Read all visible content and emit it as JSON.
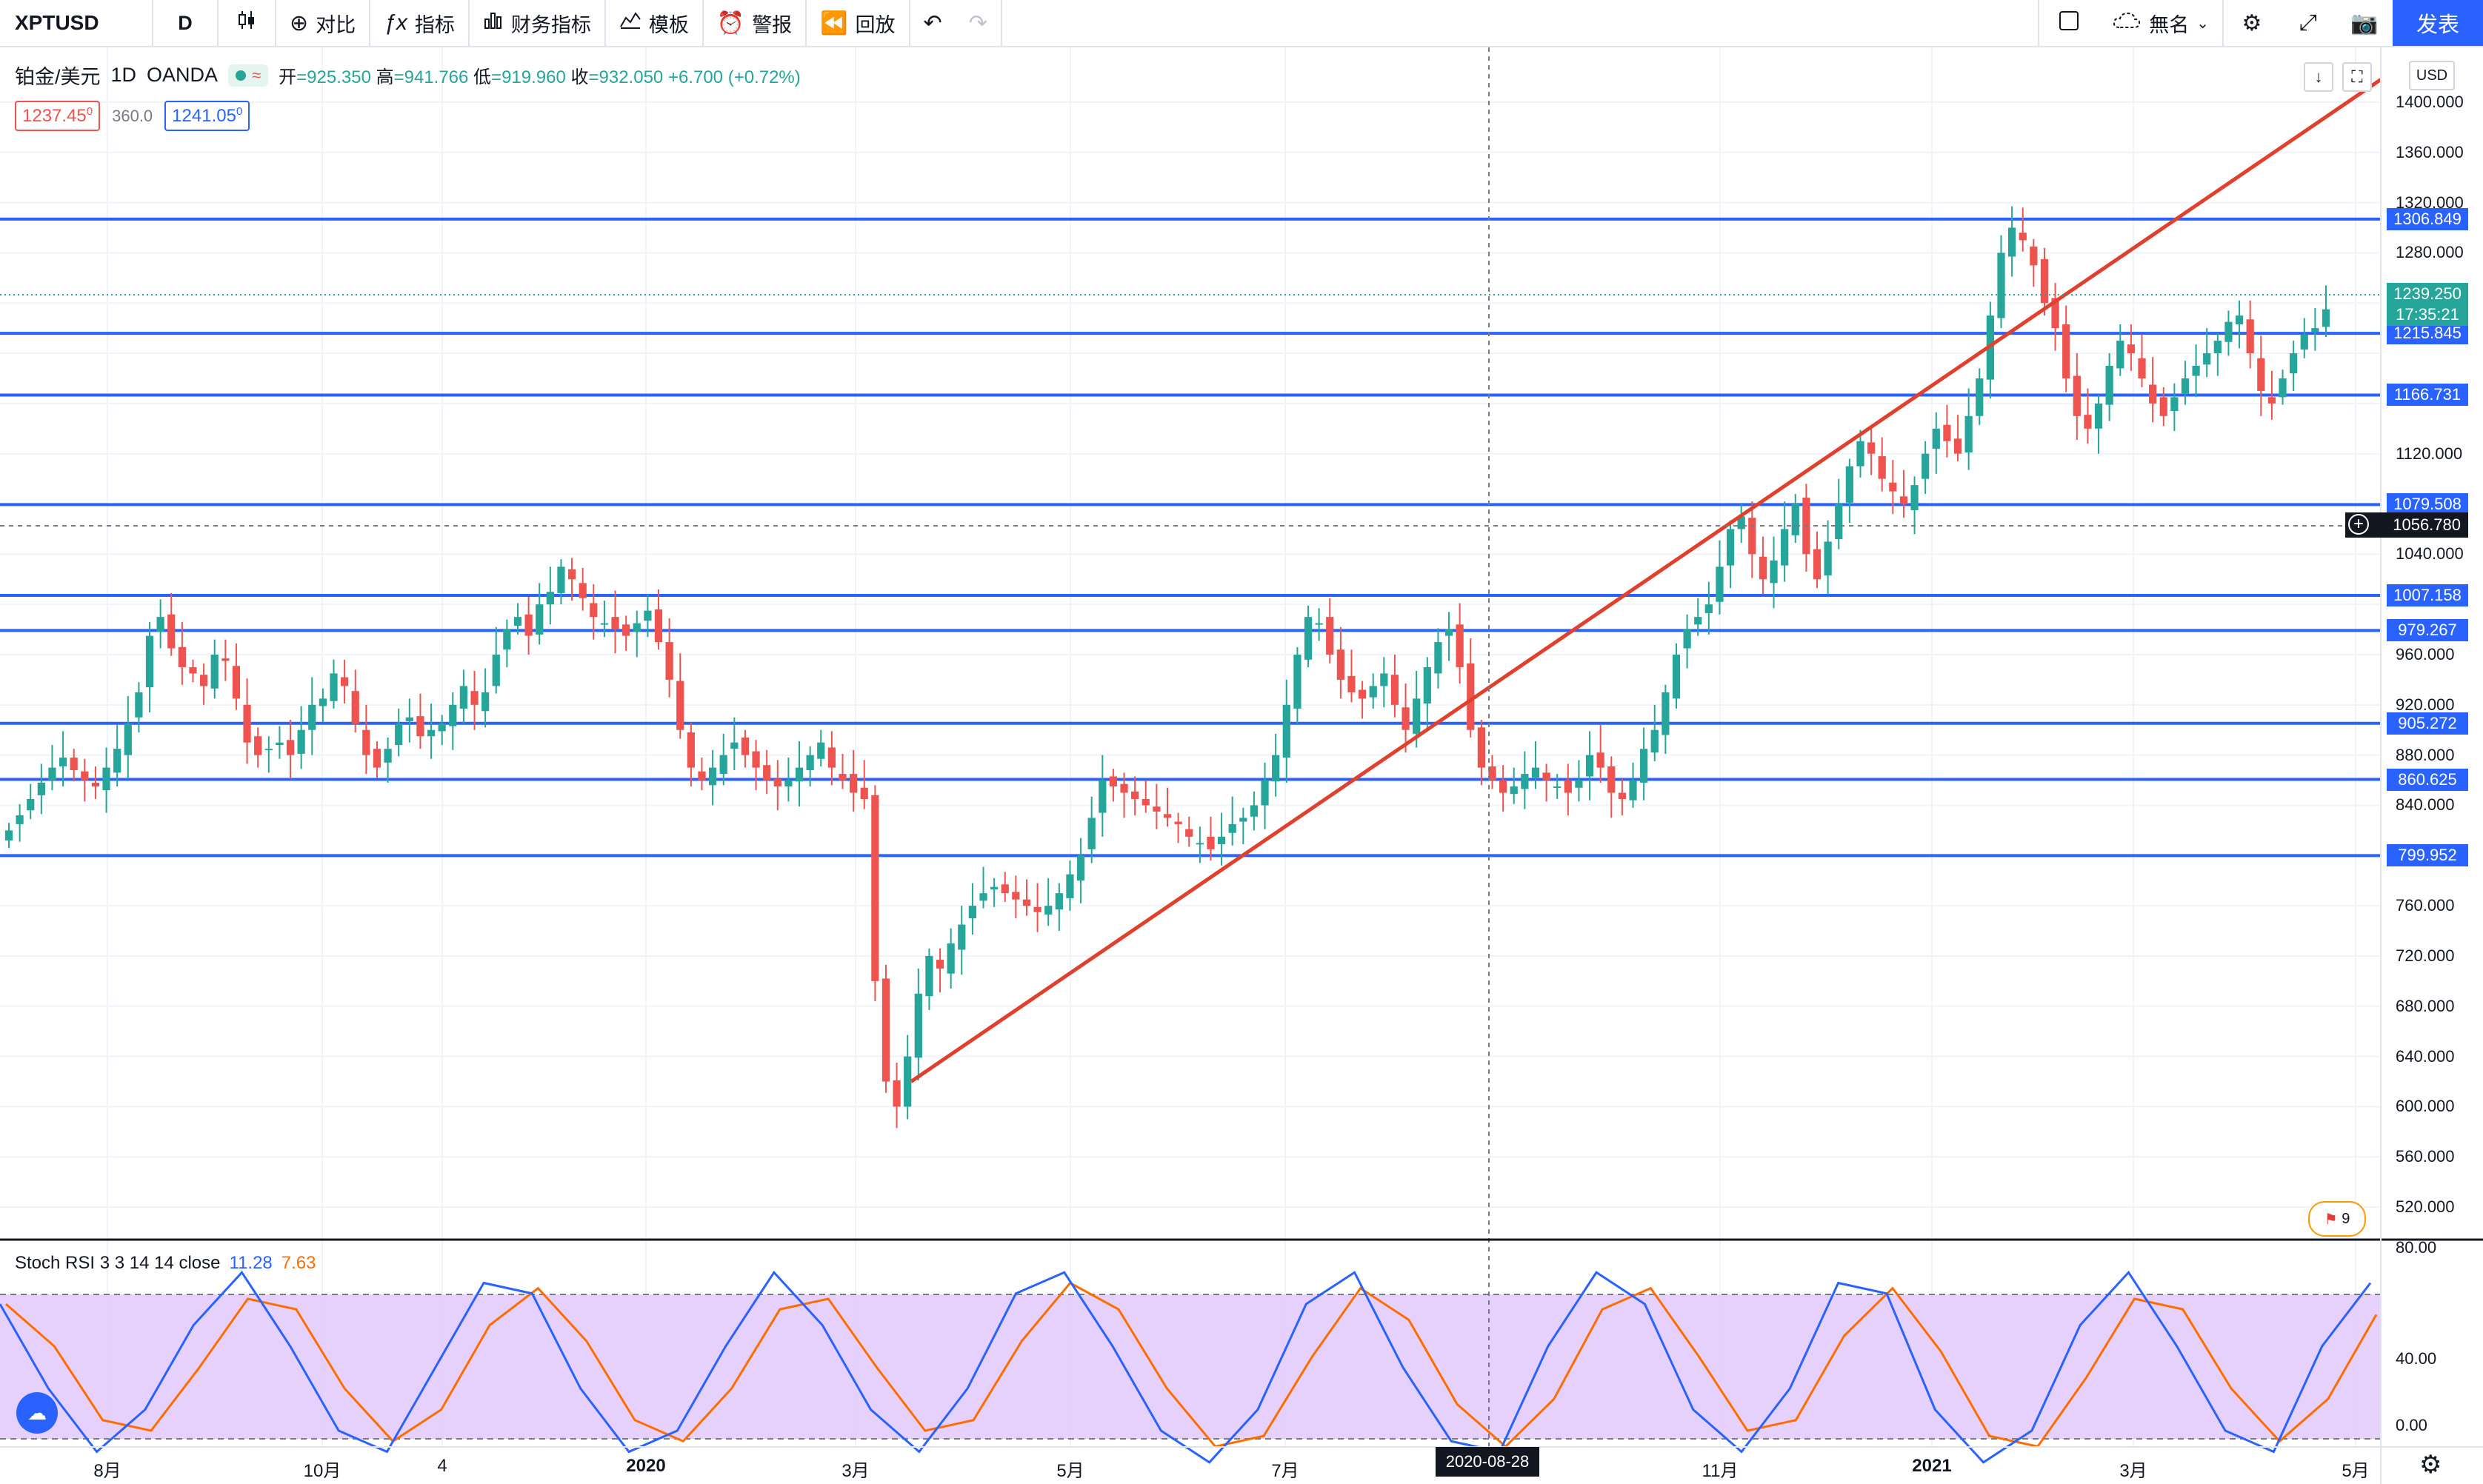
{
  "toolbar": {
    "symbol": "XPTUSD",
    "interval": "D",
    "compare_label": "对比",
    "indicators_label": "指标",
    "financials_label": "财务指标",
    "templates_label": "模板",
    "alert_label": "警报",
    "replay_label": "回放",
    "layout_name": "無名",
    "publish_label": "发表"
  },
  "legend": {
    "title": "铂金/美元",
    "interval": "1D",
    "source": "OANDA",
    "open_key": "开",
    "open": "=925.350",
    "high_key": "高",
    "high": "=941.766",
    "low_key": "低",
    "low": "=919.960",
    "close_key": "收",
    "close": "=932.050",
    "change": "+6.700 (+0.72%)",
    "bid": "1237.45",
    "bid_sup": "0",
    "spread": "360.0",
    "ask": "1241.05",
    "ask_sup": "0"
  },
  "price_axis": {
    "currency": "USD",
    "ticks": [
      "1400.000",
      "1360.000",
      "1320.000",
      "1280.000",
      "1120.000",
      "1040.000",
      "960.000",
      "920.000",
      "880.000",
      "840.000",
      "760.000",
      "720.000",
      "680.000",
      "640.000",
      "600.000",
      "560.000",
      "520.000"
    ],
    "current_price": "1239.250",
    "countdown": "17:35:21",
    "crosshair_price": "1056.780"
  },
  "horizontal_levels": [
    "1306.849",
    "1215.845",
    "1166.731",
    "1079.508",
    "1007.158",
    "979.267",
    "905.272",
    "860.625",
    "799.952"
  ],
  "stoch": {
    "name": "Stoch RSI 3 3 14 14 close",
    "k": "11.28",
    "d": "7.63",
    "ticks": [
      "80.00",
      "40.00",
      "0.00"
    ]
  },
  "time_axis": {
    "labels": [
      "8月",
      "10月",
      "4",
      "2020",
      "3月",
      "5月",
      "7月",
      "11月",
      "2021",
      "3月",
      "5月"
    ],
    "crosshair_date": "2020-08-28"
  },
  "events_badge": "9",
  "colors": {
    "up": "#26a69a",
    "down": "#ef5350",
    "level": "#2962ff",
    "trend": "#e0412f",
    "stoch_k": "#2962ff",
    "stoch_d": "#ff6d00",
    "stoch_band": "#e1c9fb",
    "accent": "#2962ff"
  },
  "chart_data": {
    "type": "candlestick",
    "symbol": "XPTUSD",
    "y_range": [
      500,
      1420
    ],
    "series_close": [
      820,
      832,
      845,
      858,
      870,
      878,
      868,
      860,
      855,
      870,
      885,
      905,
      930,
      975,
      990,
      965,
      950,
      945,
      935,
      960,
      955,
      925,
      890,
      880,
      885,
      890,
      880,
      900,
      920,
      925,
      945,
      935,
      905,
      880,
      870,
      885,
      905,
      910,
      895,
      900,
      905,
      920,
      935,
      920,
      930,
      960,
      980,
      990,
      975,
      1000,
      1010,
      1030,
      1020,
      1005,
      990,
      985,
      980,
      975,
      985,
      995,
      970,
      940,
      900,
      870,
      860,
      870,
      880,
      890,
      880,
      870,
      860,
      855,
      860,
      870,
      880,
      890,
      870,
      860,
      850,
      845,
      700,
      620,
      600,
      640,
      690,
      720,
      710,
      730,
      745,
      760,
      770,
      775,
      770,
      765,
      760,
      755,
      760,
      770,
      785,
      800,
      830,
      860,
      855,
      850,
      845,
      840,
      835,
      830,
      825,
      815,
      810,
      805,
      815,
      825,
      830,
      840,
      860,
      880,
      920,
      960,
      990,
      985,
      960,
      940,
      930,
      925,
      935,
      945,
      920,
      900,
      925,
      950,
      970,
      980,
      950,
      900,
      870,
      860,
      850,
      855,
      865,
      870,
      860,
      855,
      850,
      860,
      880,
      870,
      850,
      845,
      860,
      885,
      900,
      930,
      960,
      980,
      990,
      1000,
      1030,
      1060,
      1070,
      1040,
      1020,
      1035,
      1060,
      1080,
      1040,
      1020,
      1050,
      1080,
      1110,
      1130,
      1120,
      1100,
      1090,
      1080,
      1095,
      1120,
      1140,
      1130,
      1120,
      1150,
      1180,
      1230,
      1280,
      1300,
      1290,
      1270,
      1240,
      1220,
      1180,
      1150,
      1140,
      1160,
      1190,
      1210,
      1200,
      1180,
      1160,
      1150,
      1165,
      1180,
      1190,
      1200,
      1210,
      1225,
      1230,
      1200,
      1170,
      1160,
      1180,
      1200,
      1215,
      1220,
      1235
    ],
    "stoch_k_sample": [
      80,
      40,
      10,
      30,
      70,
      95,
      60,
      20,
      10,
      50,
      90,
      85,
      40,
      10,
      20,
      60,
      95,
      70,
      30,
      10,
      40,
      85,
      95,
      60,
      20,
      5,
      30,
      80,
      95,
      50,
      15,
      10,
      60,
      95,
      80,
      30,
      10,
      40,
      90,
      85,
      30,
      5,
      20,
      70,
      95,
      60,
      20,
      10,
      60,
      90
    ]
  }
}
